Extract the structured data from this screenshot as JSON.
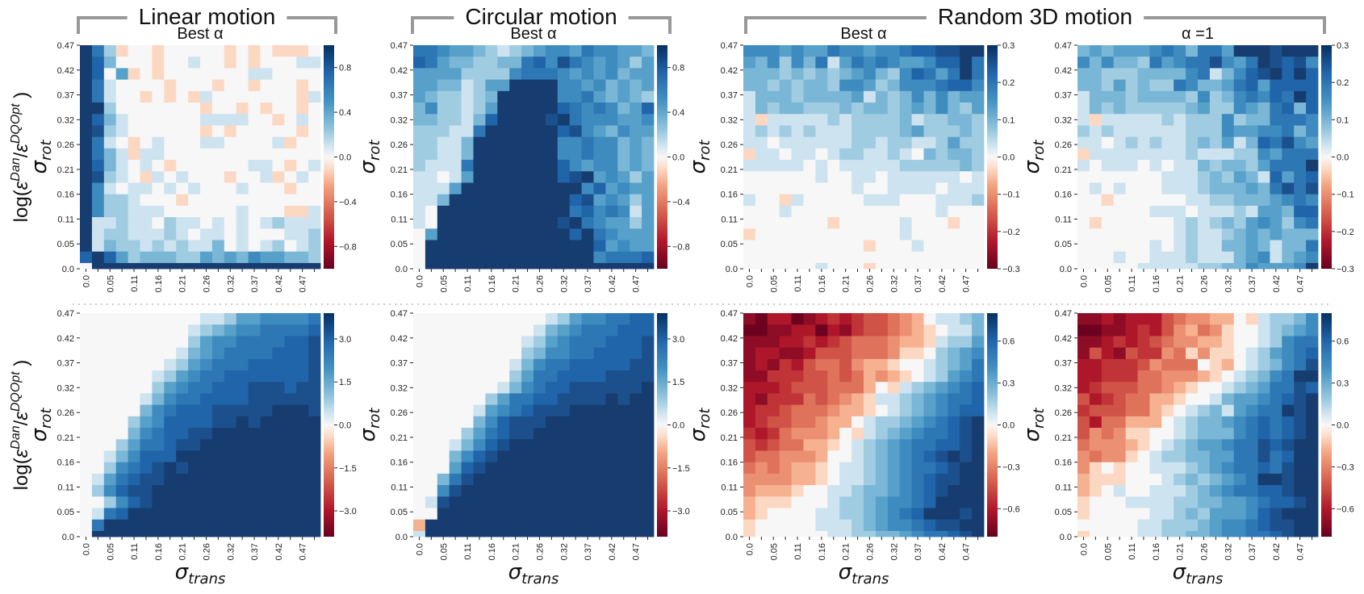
{
  "groups": [
    {
      "title": "Linear motion"
    },
    {
      "title": "Circular motion"
    },
    {
      "title": "Random 3D motion"
    }
  ],
  "row_labels": [
    {
      "prefix": "log(",
      "symbol": "ε",
      "sub": "r",
      "sup_num": "Dan",
      "slash": "/",
      "symbol2": "ε",
      "sub2": "r",
      "sup_den": "DQOpt",
      "suffix": " )"
    },
    {
      "prefix": "log(",
      "symbol": "ε",
      "sub": "t",
      "sup_num": "Dan",
      "slash": "/",
      "symbol2": "ε",
      "sub2": "t",
      "sup_den": "DQOpt",
      "suffix": " )"
    }
  ],
  "colors": {
    "bracket": "#999999",
    "separator": "#cccccc"
  },
  "chart_data": [
    {
      "type": "heatmap",
      "group": "Linear motion",
      "title": "Best α",
      "ylabel": {
        "symbol": "σ",
        "sub": "rot"
      },
      "xlabel": null,
      "x_ticks": [
        "0.0",
        "0.05",
        "0.11",
        "0.16",
        "0.21",
        "0.26",
        "0.32",
        "0.37",
        "0.42",
        "0.47"
      ],
      "y_ticks": [
        "0.0",
        "0.05",
        "0.11",
        "0.16",
        "0.21",
        "0.26",
        "0.32",
        "0.37",
        "0.42",
        "0.47"
      ],
      "colorbar": {
        "vmin": -1.0,
        "vmax": 1.0,
        "ticks": [
          0.8,
          0.4,
          0.0,
          -0.4,
          -0.8
        ],
        "tick_labels": [
          "0.8",
          "0.4",
          "0.0",
          "−0.4",
          "−0.8"
        ],
        "cmap": "RdBu_r"
      },
      "cell_encoding": "row strings top(σ_rot=0.5)→bottom(0.0), columns σ_trans 0→0.5; digit d = +d/9·vmax, letter a–i = −(1–9)/9·vmax",
      "rows": [
        "962a00a00000a0a0aaa0",
        "973000a00100a0a00011",
        "9704a0a0000000110000",
        "9610000a000a00a000a0",
        "96100a0a0a10000000a1",
        "9920000000a00a0a00a0",
        "9731000000111100a010",
        "9821000000a0a00000a0",
        "9610a010001100001a00",
        "9631a110000000000000",
        "9731010a000000110a01",
        "98210a101000a001a010",
        "95101101010001000a00",
        "95221000a00000000000",
        "95221110000001000aa1",
        "91121102110101012111",
        "91221112101101000112",
        "91322121211301012012",
        "79742333224343544332",
        "09999999999999999999"
      ]
    },
    {
      "type": "heatmap",
      "group": "Circular motion",
      "title": "Best α",
      "ylabel": {
        "symbol": "σ",
        "sub": "rot"
      },
      "xlabel": null,
      "x_ticks": [
        "0.0",
        "0.05",
        "0.11",
        "0.16",
        "0.21",
        "0.26",
        "0.32",
        "0.37",
        "0.42",
        "0.47"
      ],
      "y_ticks": [
        "0.0",
        "0.05",
        "0.11",
        "0.16",
        "0.21",
        "0.26",
        "0.32",
        "0.37",
        "0.42",
        "0.47"
      ],
      "colorbar": {
        "vmin": -1.0,
        "vmax": 1.0,
        "ticks": [
          0.8,
          0.4,
          0.0,
          -0.4,
          -0.8
        ],
        "tick_labels": [
          "0.8",
          "0.4",
          "0.0",
          "−0.4",
          "−0.8"
        ],
        "cmap": "RdBu_r"
      },
      "cell_encoding": "same as panel 1",
      "rows": [
        "66544321234554655443",
        "76433223367586545424",
        "44442222566654545344",
        "44331244999955453434",
        "43221239999955643432",
        "35221249999976565347",
        "33221379999896555445",
        "22211699999978543544",
        "22113999999955655343",
        "22113999999955655343",
        "21116999999975455343",
        "11014999999978945424",
        "11149999999999574544",
        "11399999999997845424",
        "10999999999996756514",
        "10999999999989654424",
        "04999999999997965444",
        "09999999999999974544",
        "09999999999999956667",
        "09999999999999999999"
      ]
    },
    {
      "type": "heatmap",
      "group": "Random 3D motion",
      "title": "Best α",
      "ylabel": {
        "symbol": "σ",
        "sub": "rot"
      },
      "xlabel": null,
      "x_ticks": [
        "0.0",
        "0.05",
        "0.11",
        "0.16",
        "0.21",
        "0.26",
        "0.32",
        "0.37",
        "0.42",
        "0.47"
      ],
      "y_ticks": [
        "0.0",
        "0.05",
        "0.11",
        "0.16",
        "0.21",
        "0.26",
        "0.32",
        "0.37",
        "0.42",
        "0.47"
      ],
      "colorbar": {
        "vmin": -0.3,
        "vmax": 0.3,
        "ticks": [
          0.3,
          0.2,
          0.1,
          0.0,
          -0.1,
          -0.2,
          -0.3
        ],
        "tick_labels": [
          "0.3",
          "0.2",
          "0.1",
          "0.0",
          "−0.1",
          "−0.2",
          "−0.3"
        ],
        "cmap": "RdBu_r"
      },
      "cell_encoding": "same as panel 1",
      "rows": [
        "55545446554556778899",
        "43525361465654457796",
        "33323232345325764696",
        "33232332554235556775",
        "13332333341323535344",
        "13233222323323435324",
        "1a111112122223122332",
        "12121211122223422232",
        "11011111122122112422",
        "a1101101221121032332",
        "11111010111112222232",
        "00000010011011111101",
        "00000000010011110111",
        "100a1000001110001112",
        "00010000000000001000",
        "0000000a000001000a00",
        "a0000000000001000000",
        "0000000000a000100000",
        "00000000000000000000",
        "0000001000a000000000"
      ]
    },
    {
      "type": "heatmap",
      "group": "Random 3D motion",
      "title": "α =1",
      "ylabel": {
        "symbol": "σ",
        "sub": "rot"
      },
      "xlabel": null,
      "x_ticks": [
        "0.0",
        "0.05",
        "0.11",
        "0.16",
        "0.21",
        "0.26",
        "0.32",
        "0.37",
        "0.42",
        "0.47"
      ],
      "y_ticks": [
        "0.0",
        "0.05",
        "0.11",
        "0.16",
        "0.21",
        "0.26",
        "0.32",
        "0.37",
        "0.42",
        "0.47"
      ],
      "colorbar": {
        "vmin": -0.3,
        "vmax": 0.3,
        "ticks": [
          0.3,
          0.2,
          0.1,
          0.0,
          -0.1,
          -0.2,
          -0.3
        ],
        "tick_labels": [
          "0.3",
          "0.2",
          "0.1",
          "0.0",
          "−0.1",
          "−0.2",
          "−0.3"
        ],
        "cmap": "RdBu_r"
      },
      "cell_encoding": "same as panel 1",
      "rows": [
        "34344456536649998999",
        "53533264566854698785",
        "33222333356135789797",
        "33242322653346747777",
        "13332333325235657697",
        "13232222234225436737",
        "1a111112122252336665",
        "21211111122254455635",
        "11012121123241376854",
        "a1111111121112254666",
        "10111010113233246669",
        "00000001112324317467",
        "01010001112333436868",
        "00a00000011223334565",
        "00000011101112144377",
        "0a000000121232454256",
        "00000000121123434333",
        "00000010121133431336",
        "00010011121113451345",
        "00000111112233544459"
      ]
    },
    {
      "type": "heatmap",
      "group": "Linear motion",
      "title": "",
      "ylabel": {
        "symbol": "σ",
        "sub": "rot"
      },
      "xlabel": {
        "symbol": "σ",
        "sub": "trans"
      },
      "x_ticks": [
        "0.0",
        "0.05",
        "0.11",
        "0.16",
        "0.21",
        "0.26",
        "0.32",
        "0.37",
        "0.42",
        "0.47"
      ],
      "y_ticks": [
        "0.0",
        "0.05",
        "0.11",
        "0.16",
        "0.21",
        "0.26",
        "0.32",
        "0.37",
        "0.42",
        "0.47"
      ],
      "colorbar": {
        "vmin": -3.9,
        "vmax": 3.9,
        "ticks": [
          3.0,
          1.5,
          0.0,
          -1.5,
          -3.0
        ],
        "tick_labels": [
          "3.0",
          "1.5",
          "0.0",
          "−1.5",
          "−3.0"
        ],
        "cmap": "RdBu_r"
      },
      "cell_encoding": "same as panel 1",
      "rows": [
        "00000000001124455556",
        "00000000012345566667",
        "00000000024556666778",
        "00000000134566667778",
        "00000001245666777778",
        "00000012456677777778",
        "00000024566777888788",
        "00000135667777888888",
        "00000356777888889998",
        "00002457777889899999",
        "00003567788999999999",
        "00024667889999999999",
        "00135777999999999999",
        "00256789899999999999",
        "01467889999999999999",
        "02578899999999999999",
        "00257899999999999999",
        "01679999999999999999",
        "06999999999999999999",
        "09999999999999999999"
      ]
    },
    {
      "type": "heatmap",
      "group": "Circular motion",
      "title": "",
      "ylabel": {
        "symbol": "σ",
        "sub": "rot"
      },
      "xlabel": {
        "symbol": "σ",
        "sub": "trans"
      },
      "x_ticks": [
        "0.0",
        "0.05",
        "0.11",
        "0.16",
        "0.21",
        "0.26",
        "0.32",
        "0.37",
        "0.42",
        "0.47"
      ],
      "y_ticks": [
        "0.0",
        "0.05",
        "0.11",
        "0.16",
        "0.21",
        "0.26",
        "0.32",
        "0.37",
        "0.42",
        "0.47"
      ],
      "colorbar": {
        "vmin": -3.9,
        "vmax": 3.9,
        "ticks": [
          3.0,
          1.5,
          0.0,
          -1.5,
          -3.0
        ],
        "tick_labels": [
          "3.0",
          "1.5",
          "0.0",
          "−1.5",
          "−3.0"
        ],
        "cmap": "RdBu_r"
      },
      "cell_encoding": "same as panel 1",
      "rows": [
        "00000000000124556677",
        "00000000001345666777",
        "00000000012456667778",
        "00000000023556677778",
        "00000000135667777788",
        "00000000246677778888",
        "00000001356778888889",
        "00000024667788889899",
        "00000145678889999999",
        "00000357888999999999",
        "00002467889999999999",
        "00013578999999999999",
        "00035789999999999999",
        "00047899999999999999",
        "00368999999999999999",
        "00589999999999999999",
        "01899999999999999999",
        "00999999999999999999",
        "b9999999999999999999",
        "19999999999999999999"
      ]
    },
    {
      "type": "heatmap",
      "group": "Random 3D motion",
      "title": "",
      "ylabel": {
        "symbol": "σ",
        "sub": "rot"
      },
      "xlabel": {
        "symbol": "σ",
        "sub": "trans"
      },
      "x_ticks": [
        "0.0",
        "0.05",
        "0.11",
        "0.16",
        "0.21",
        "0.26",
        "0.32",
        "0.37",
        "0.42",
        "0.47"
      ],
      "y_ticks": [
        "0.0",
        "0.05",
        "0.11",
        "0.16",
        "0.21",
        "0.26",
        "0.32",
        "0.37",
        "0.42",
        "0.47"
      ],
      "colorbar": {
        "vmin": -0.8,
        "vmax": 0.8,
        "ticks": [
          0.6,
          0.3,
          0.0,
          -0.3,
          -0.6
        ],
        "tick_labels": [
          "0.6",
          "0.3",
          "0.0",
          "−0.3",
          "−0.6"
        ],
        "cmap": "RdBu_r"
      },
      "cell_encoding": "same as panel 1",
      "rows": [
        "higgihgfgfeedcb01123",
        "iihhggighfeedcba0113",
        "hhhggfgfedddcbba1224",
        "hgghhgeeedddcaa02345",
        "hghfgeddecbba0012346",
        "hhfffeededbcba012456",
        "gggfeeedddb0a1234567",
        "ghfffdedcba112345667",
        "gffedddcbba012345677",
        "gfeeddcbb01223456789",
        "fgfdcccb0a1234566789",
        "efeddbba012345667789",
        "eddcccb0012345678989",
        "dcdcbba0112345667899",
        "ccccbba0112345678899",
        "cbbba001123345678999",
        "baaa0001223455679999",
        "ba000011223456799989",
        "a0000011123455678899",
        "a0000001122334566789"
      ]
    },
    {
      "type": "heatmap",
      "group": "Random 3D motion",
      "title": "",
      "ylabel": {
        "symbol": "σ",
        "sub": "rot"
      },
      "xlabel": {
        "symbol": "σ",
        "sub": "trans"
      },
      "x_ticks": [
        "0.0",
        "0.05",
        "0.11",
        "0.16",
        "0.21",
        "0.26",
        "0.32",
        "0.37",
        "0.42",
        "0.47"
      ],
      "y_ticks": [
        "0.0",
        "0.05",
        "0.11",
        "0.16",
        "0.21",
        "0.26",
        "0.32",
        "0.37",
        "0.42",
        "0.47"
      ],
      "colorbar": {
        "vmin": -0.8,
        "vmax": 0.8,
        "ticks": [
          0.6,
          0.3,
          0.0,
          -0.3,
          -0.6
        ],
        "tick_labels": [
          "0.6",
          "0.3",
          "0.0",
          "−0.3",
          "−0.6"
        ],
        "cmap": "RdBu_r"
      },
      "cell_encoding": "same as panel 1",
      "rows": [
        "hhghgggedccbb0a12235",
        "iihhgfgecbdca0012345",
        "hhgfgfedccbba0012566",
        "hegheffcdacaa0124567",
        "ggfffecddd0ab0123568",
        "ggfffddcccba01235699",
        "gfeeeddcba0012346687",
        "egfeddbba00134456789",
        "feeeddba012314566989",
        "egddbbb0123345676789",
        "ecdcaa00123335676789",
        "dcccba01234456687899",
        "cdcca012233446686799",
        "ca0a0011123456676899",
        "baaa0001232345699899",
        "ba010011123456677899",
        "a0001111223344567789",
        "a0000011232444578999",
        "00000112223455678899",
        "a0000112233455667899"
      ]
    }
  ]
}
